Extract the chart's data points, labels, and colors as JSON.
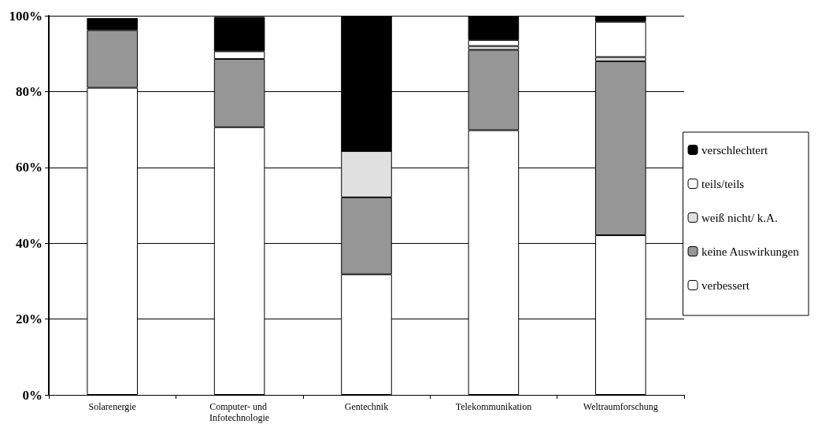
{
  "chart_data": {
    "type": "bar",
    "stacked": true,
    "categories": [
      "Solarenergie",
      "Computer- und Infotechnologie",
      "Gentechnik",
      "Telekommunikation",
      "Weltraumforschung"
    ],
    "series": [
      {
        "name": "verbessert",
        "color": "#ffffff",
        "values": [
          81,
          70.6,
          31.8,
          69.8,
          42.1
        ]
      },
      {
        "name": "keine Auswirkungen",
        "color": "#969696",
        "values": [
          15.2,
          18,
          20.3,
          21.2,
          45.9
        ]
      },
      {
        "name": "weiß nicht/ k.A.",
        "color": "#e0e0e0",
        "values": [
          null,
          null,
          12.2,
          1,
          1.1
        ]
      },
      {
        "name": "teils/teils",
        "color": "#ffffff",
        "values": [
          null,
          2,
          0,
          1.6,
          9.3
        ]
      },
      {
        "name": "verschlechtert",
        "color": "#000000",
        "values": [
          3.2,
          9.1,
          35.7,
          6.4,
          1.6
        ]
      }
    ],
    "ylim": [
      0,
      100
    ],
    "yticks": [
      {
        "value": 0,
        "label": "0%"
      },
      {
        "value": 20,
        "label": "20%"
      },
      {
        "value": 40,
        "label": "40%"
      },
      {
        "value": 60,
        "label": "60%"
      },
      {
        "value": 80,
        "label": "80%"
      },
      {
        "value": 100,
        "label": "100%"
      }
    ],
    "grid": "y",
    "legend": "right"
  }
}
